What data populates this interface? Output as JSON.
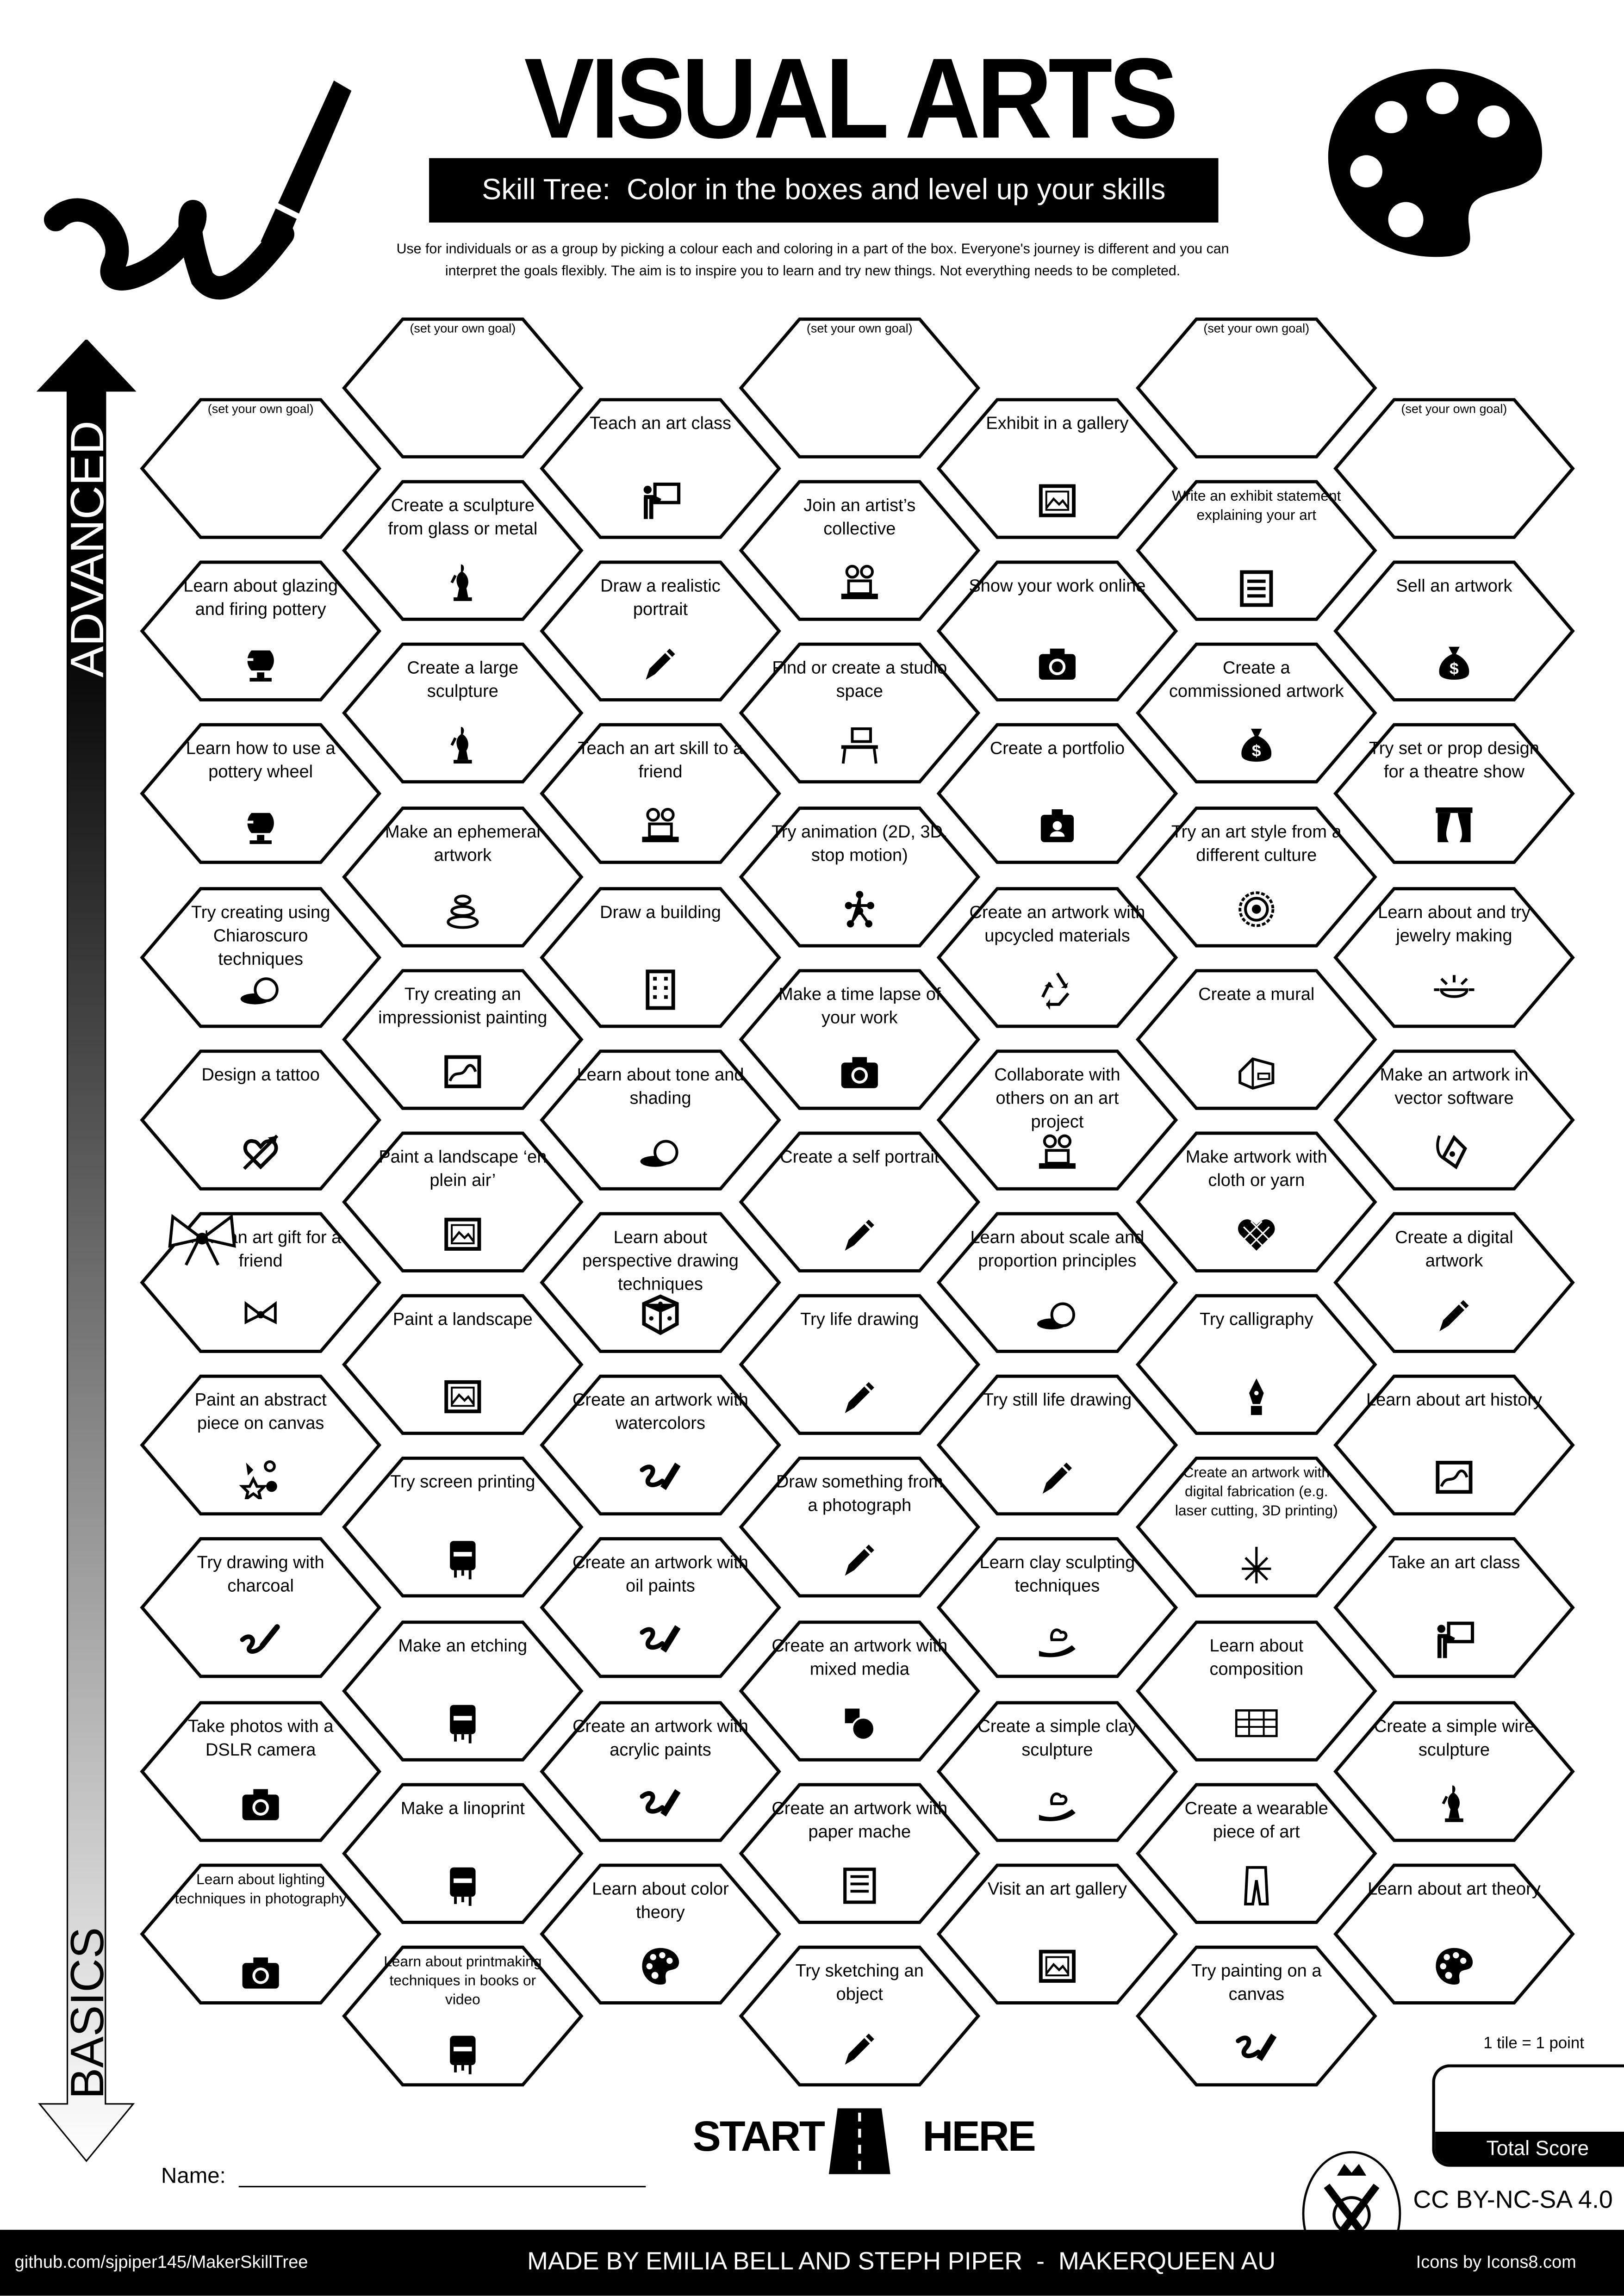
{
  "header": {
    "title": "VISUAL ARTS",
    "subtitle": "Skill Tree:  Color in the boxes and level up your skills",
    "description_line1": "Use for individuals or as a group by picking a colour each and coloring in a part of the box.  Everyone's journey is different and you can",
    "description_line2": "interpret the goals flexibly.  The aim is to inspire you to learn and try new things. Not everything needs to be completed.",
    "left_illustration": "paintbrush-stroke-icon",
    "right_illustration": "palette-icon"
  },
  "axis": {
    "top_label": "ADVANCED",
    "bottom_label": "BASICS"
  },
  "goal_placeholder": "(set your own goal)",
  "columns": [
    [
      {
        "label": "",
        "goal": true
      },
      {
        "label": "Learn about glazing and firing pottery",
        "icon": "pottery-icon"
      },
      {
        "label": "Learn how to use a pottery wheel",
        "icon": "pottery-icon"
      },
      {
        "label": "Try creating using Chiaroscuro techniques",
        "icon": "light-shadow-icon"
      },
      {
        "label": "Design a tattoo",
        "icon": "heart-arrow-icon"
      },
      {
        "label": "Make an art gift for a friend",
        "icon": "gift-bow-icon"
      },
      {
        "label": "Paint an abstract piece on canvas",
        "icon": "abstract-shapes-icon"
      },
      {
        "label": "Try drawing with charcoal",
        "icon": "charcoal-icon"
      },
      {
        "label": "Take photos with a DSLR camera",
        "icon": "camera-icon"
      },
      {
        "label": "Learn about lighting techniques in photography",
        "icon": "camera-icon"
      }
    ],
    [
      {
        "label": "",
        "goal": true
      },
      {
        "label": "Create a sculpture from glass or metal",
        "icon": "sculpture-icon"
      },
      {
        "label": "Create a large sculpture",
        "icon": "sculpture-icon"
      },
      {
        "label": "Make an ephemeral artwork",
        "icon": "stacked-stones-icon"
      },
      {
        "label": "Try creating an impressionist painting",
        "icon": "framed-painting-icon"
      },
      {
        "label": "Paint a landscape ‘en plein air’",
        "icon": "picture-icon"
      },
      {
        "label": "Paint a landscape",
        "icon": "picture-icon"
      },
      {
        "label": "Try screen printing",
        "icon": "printing-icon"
      },
      {
        "label": "Make an etching",
        "icon": "printing-icon"
      },
      {
        "label": "Make a linoprint",
        "icon": "printing-icon"
      },
      {
        "label": "Learn about printmaking techniques in books or video",
        "icon": "printing-icon"
      }
    ],
    [
      {
        "label": "Teach an art class",
        "icon": "teacher-board-icon"
      },
      {
        "label": "Draw a realistic portrait",
        "icon": "pencil-icon"
      },
      {
        "label": "Teach an art skill to a friend",
        "icon": "collaborate-icon"
      },
      {
        "label": "Draw a building",
        "icon": "building-icon"
      },
      {
        "label": "Learn about tone and shading",
        "icon": "light-shadow-icon"
      },
      {
        "label": "Learn about perspective drawing techniques",
        "icon": "cube-icon"
      },
      {
        "label": "Create an artwork with watercolors",
        "icon": "brush-stroke-icon"
      },
      {
        "label": "Create an artwork with oil paints",
        "icon": "brush-stroke-icon"
      },
      {
        "label": "Create an artwork with acrylic paints",
        "icon": "brush-stroke-icon"
      },
      {
        "label": "Learn about color theory",
        "icon": "palette-icon"
      }
    ],
    [
      {
        "label": "",
        "goal": true
      },
      {
        "label": "Join an artist’s collective",
        "icon": "collaborate-icon"
      },
      {
        "label": "Find or create a studio space",
        "icon": "desk-icon"
      },
      {
        "label": "Try animation (2D, 3D, stop motion)",
        "icon": "animation-icon"
      },
      {
        "label": "Make a time lapse of your work",
        "icon": "camera-icon"
      },
      {
        "label": "Create a self portrait",
        "icon": "pencil-icon"
      },
      {
        "label": "Try life drawing",
        "icon": "pencil-icon"
      },
      {
        "label": "Draw something from a photograph",
        "icon": "pencil-icon"
      },
      {
        "label": "Create an artwork with mixed media",
        "icon": "mixed-media-icon"
      },
      {
        "label": "Create an artwork with paper mache",
        "icon": "newspaper-icon"
      },
      {
        "label": "Try sketching an object",
        "icon": "pencil-icon"
      }
    ],
    [
      {
        "label": "Exhibit in a gallery",
        "icon": "picture-icon"
      },
      {
        "label": "Show your work online",
        "icon": "camera-icon"
      },
      {
        "label": "Create a portfolio",
        "icon": "portfolio-icon"
      },
      {
        "label": "Create an artwork with upcycled materials",
        "icon": "recycle-icon"
      },
      {
        "label": "Collaborate with others on an art project",
        "icon": "collaborate-icon"
      },
      {
        "label": "Learn about scale and proportion principles",
        "icon": "light-shadow-icon"
      },
      {
        "label": "Try still life drawing",
        "icon": "pencil-icon"
      },
      {
        "label": "Learn clay sculpting techniques",
        "icon": "clay-hand-icon"
      },
      {
        "label": "Create a simple clay sculpture",
        "icon": "clay-hand-icon"
      },
      {
        "label": "Visit an art gallery",
        "icon": "picture-icon"
      }
    ],
    [
      {
        "label": "",
        "goal": true
      },
      {
        "label": "Write an exhibit statement explaining your art",
        "icon": "document-icon"
      },
      {
        "label": "Create a commissioned artwork",
        "icon": "money-bag-icon"
      },
      {
        "label": "Try an art style from a different culture",
        "icon": "mandala-icon"
      },
      {
        "label": "Create a mural",
        "icon": "house-mural-icon"
      },
      {
        "label": "Make artwork with cloth or yarn",
        "icon": "yarn-heart-icon"
      },
      {
        "label": "Try calligraphy",
        "icon": "fountain-pen-icon"
      },
      {
        "label": "Create an artwork with digital fabrication (e.g. laser cutting, 3D printing)",
        "icon": "laser-icon"
      },
      {
        "label": "Learn about composition",
        "icon": "grid-table-icon"
      },
      {
        "label": "Create a wearable piece of art",
        "icon": "trousers-icon"
      },
      {
        "label": "Try painting on a canvas",
        "icon": "brush-stroke-icon"
      }
    ],
    [
      {
        "label": "",
        "goal": true
      },
      {
        "label": "Sell an artwork",
        "icon": "money-bag-icon"
      },
      {
        "label": "Try set or prop design for a theatre show",
        "icon": "theatre-curtains-icon"
      },
      {
        "label": "Learn about and try jewelry making",
        "icon": "sun-jewelry-icon"
      },
      {
        "label": "Make an artwork in vector software",
        "icon": "vector-pen-icon"
      },
      {
        "label": "Create a digital artwork",
        "icon": "pencil-icon"
      },
      {
        "label": "Learn about art history",
        "icon": "framed-painting-icon"
      },
      {
        "label": "Take an art class",
        "icon": "teacher-board-icon"
      },
      {
        "label": "Create a simple wire sculpture",
        "icon": "sculpture-icon"
      },
      {
        "label": "Learn about art theory",
        "icon": "palette-icon"
      }
    ]
  ],
  "start": {
    "left": "START",
    "right": "HERE",
    "icon": "road-icon"
  },
  "name_label": "Name:",
  "score": {
    "note": "1 tile = 1 point",
    "label": "Total Score"
  },
  "license": "CC BY-NC-SA 4.0",
  "footer": {
    "github": "github.com/sjpiper145/MakerSkillTree",
    "credits": "MADE BY EMILIA BELL AND STEPH PIPER  -  MAKERQUEEN AU",
    "icons_credit": "Icons by Icons8.com",
    "logo": "makerqueen-logo-icon"
  }
}
